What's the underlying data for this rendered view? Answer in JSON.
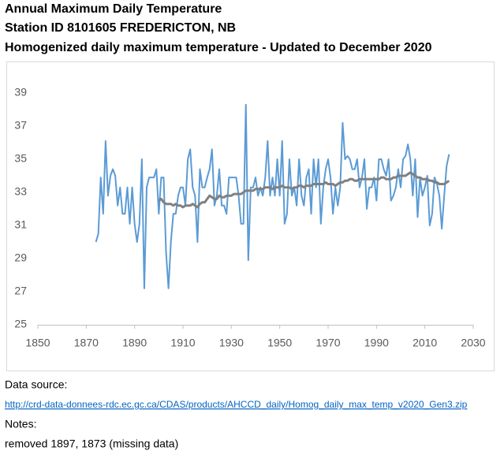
{
  "chart_data": {
    "type": "line",
    "title_lines": [
      "Annual Maximum Daily Temperature",
      "Station ID 8101605  FREDERICTON, NB",
      "Homogenized daily maximum temperature - Updated to December 2020"
    ],
    "x": [
      1874,
      1875,
      1876,
      1877,
      1878,
      1879,
      1880,
      1881,
      1882,
      1883,
      1884,
      1885,
      1886,
      1887,
      1888,
      1889,
      1890,
      1891,
      1892,
      1893,
      1894,
      1895,
      1896,
      1898,
      1899,
      1900,
      1901,
      1902,
      1903,
      1904,
      1905,
      1906,
      1907,
      1908,
      1909,
      1910,
      1911,
      1912,
      1913,
      1914,
      1915,
      1916,
      1917,
      1918,
      1919,
      1920,
      1921,
      1922,
      1923,
      1924,
      1925,
      1926,
      1927,
      1928,
      1929,
      1930,
      1931,
      1932,
      1933,
      1934,
      1935,
      1936,
      1937,
      1938,
      1939,
      1940,
      1941,
      1942,
      1943,
      1944,
      1945,
      1946,
      1947,
      1948,
      1949,
      1950,
      1951,
      1952,
      1953,
      1954,
      1955,
      1956,
      1957,
      1958,
      1959,
      1960,
      1961,
      1962,
      1963,
      1964,
      1965,
      1966,
      1967,
      1968,
      1969,
      1970,
      1971,
      1972,
      1973,
      1974,
      1975,
      1976,
      1977,
      1978,
      1979,
      1980,
      1981,
      1982,
      1983,
      1984,
      1985,
      1986,
      1987,
      1988,
      1989,
      1990,
      1991,
      1992,
      1993,
      1994,
      1995,
      1996,
      1997,
      1998,
      1999,
      2000,
      2001,
      2002,
      2003,
      2004,
      2005,
      2006,
      2007,
      2008,
      2009,
      2010,
      2011,
      2012,
      2013,
      2014,
      2015,
      2016,
      2017,
      2018,
      2019,
      2020
    ],
    "series": [
      {
        "color": "#5b9bd5",
        "values": [
          30.0,
          30.5,
          33.9,
          31.7,
          36.1,
          32.8,
          34.0,
          34.4,
          34.0,
          32.2,
          33.3,
          31.7,
          31.7,
          33.3,
          31.1,
          33.3,
          31.1,
          30.0,
          31.1,
          35.0,
          27.2,
          33.3,
          33.9,
          33.9,
          34.4,
          31.7,
          33.9,
          33.9,
          29.4,
          27.2,
          30.0,
          31.7,
          31.7,
          32.8,
          33.3,
          33.3,
          32.2,
          35.0,
          35.6,
          33.3,
          32.8,
          30.0,
          34.4,
          33.3,
          33.3,
          33.9,
          34.4,
          35.6,
          32.2,
          32.8,
          34.4,
          32.2,
          32.2,
          31.7,
          33.9,
          33.9,
          33.9,
          33.9,
          32.8,
          31.1,
          31.1,
          38.3,
          28.9,
          33.3,
          33.3,
          33.9,
          32.8,
          33.3,
          32.8,
          33.9,
          36.1,
          32.8,
          33.9,
          32.8,
          35.0,
          32.8,
          36.1,
          31.1,
          31.7,
          35.0,
          32.8,
          33.3,
          32.2,
          35.0,
          32.8,
          32.2,
          33.9,
          34.4,
          31.7,
          35.0,
          33.3,
          35.0,
          31.1,
          33.3,
          34.4,
          35.0,
          33.9,
          31.7,
          33.3,
          32.2,
          33.3,
          37.2,
          35.0,
          35.2,
          35.0,
          34.4,
          34.4,
          35.0,
          33.3,
          33.9,
          35.0,
          32.0,
          33.3,
          33.3,
          33.9,
          32.5,
          35.0,
          35.0,
          34.4,
          34.0,
          35.0,
          32.5,
          32.8,
          33.3,
          34.4,
          33.3,
          35.0,
          35.2,
          35.9,
          35.0,
          32.8,
          35.0,
          31.5,
          33.9,
          32.8,
          33.3,
          34.0,
          31.0,
          31.7,
          33.9,
          33.5,
          32.8,
          30.8,
          32.8,
          34.6,
          35.3
        ]
      },
      {
        "color": "#808080",
        "values": [
          null,
          null,
          null,
          null,
          null,
          null,
          null,
          null,
          null,
          null,
          null,
          null,
          null,
          null,
          null,
          null,
          null,
          null,
          null,
          null,
          null,
          null,
          null,
          null,
          null,
          32.5,
          32.6,
          32.4,
          32.3,
          32.3,
          32.3,
          32.2,
          32.3,
          32.2,
          32.2,
          32.1,
          32.2,
          32.2,
          32.2,
          32.3,
          32.2,
          32.1,
          32.3,
          32.4,
          32.4,
          32.6,
          32.8,
          32.7,
          32.6,
          32.6,
          32.8,
          32.7,
          32.7,
          32.8,
          32.8,
          32.8,
          32.9,
          32.9,
          32.9,
          32.9,
          33.0,
          33.1,
          33.1,
          33.1,
          33.1,
          33.2,
          33.2,
          33.2,
          33.2,
          33.3,
          33.3,
          33.3,
          33.2,
          33.3,
          33.3,
          33.3,
          33.4,
          33.3,
          33.3,
          33.3,
          33.2,
          33.3,
          33.3,
          33.4,
          33.4,
          33.3,
          33.4,
          33.4,
          33.4,
          33.5,
          33.5,
          33.5,
          33.5,
          33.5,
          33.6,
          33.5,
          33.5,
          33.5,
          33.4,
          33.5,
          33.6,
          33.6,
          33.7,
          33.7,
          33.8,
          33.8,
          33.7,
          33.7,
          33.8,
          33.8,
          33.8,
          33.8,
          33.8,
          33.8,
          33.8,
          33.8,
          33.8,
          33.9,
          33.9,
          33.8,
          33.8,
          33.8,
          33.9,
          33.9,
          34.0,
          34.0,
          34.0,
          34.0,
          34.1,
          34.2,
          34.1,
          34.0,
          33.9,
          33.9,
          33.8,
          33.8,
          33.8,
          33.7,
          33.7,
          33.6,
          33.6,
          33.5,
          33.5,
          33.5,
          33.6,
          33.7
        ]
      }
    ],
    "xlim": [
      1850,
      2030
    ],
    "xticks": [
      1850,
      1870,
      1890,
      1910,
      1930,
      1950,
      1970,
      1990,
      2010,
      2030
    ],
    "ylim": [
      25,
      39
    ],
    "yticks": [
      25,
      27,
      29,
      31,
      33,
      35,
      37,
      39
    ],
    "grid": false
  },
  "notes": {
    "source_label": "Data source:",
    "source_url": "http://crd-data-donnees-rdc.ec.gc.ca/CDAS/products/AHCCD_daily/Homog_daily_max_temp_v2020_Gen3.zip",
    "notes_label": "Notes:",
    "note": "removed 1897, 1873 (missing data)"
  }
}
